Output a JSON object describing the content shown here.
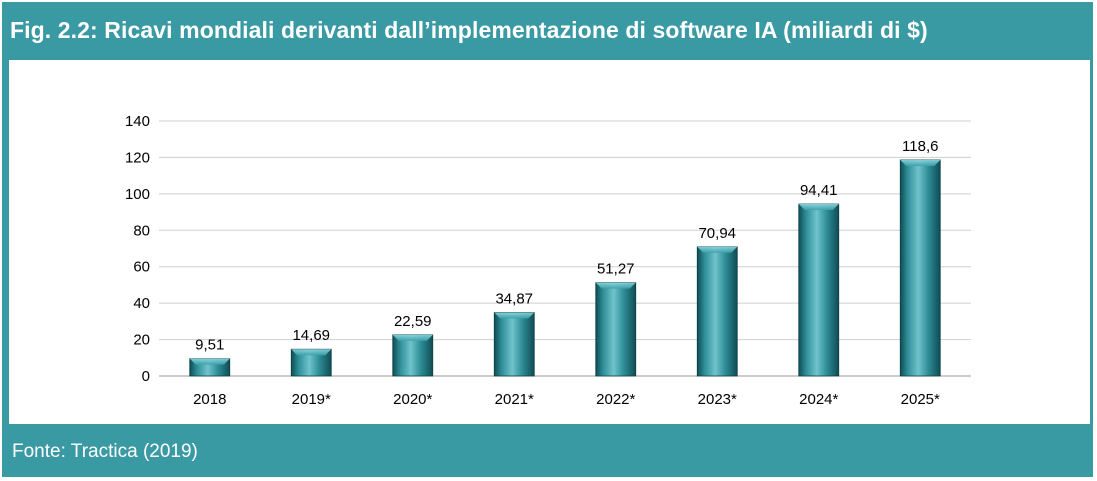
{
  "figure": {
    "title": "Fig. 2.2: Ricavi mondiali derivanti dall’implementazione di software IA (miliardi di $)",
    "source": "Fonte: Tractica (2019)"
  },
  "colors": {
    "frame": "#3a9aa3",
    "bar_light": "#6fc3cc",
    "bar_mid": "#2e8d97",
    "bar_dark": "#0f4c53",
    "grid": "#cfcfcf",
    "axis_text": "#000000"
  },
  "chart_data": {
    "type": "bar",
    "categories": [
      "2018",
      "2019*",
      "2020*",
      "2021*",
      "2022*",
      "2023*",
      "2024*",
      "2025*"
    ],
    "values": [
      9.51,
      14.69,
      22.59,
      34.87,
      51.27,
      70.94,
      94.41,
      118.6
    ],
    "data_labels": [
      "9,51",
      "14,69",
      "22,59",
      "34,87",
      "51,27",
      "70,94",
      "94,41",
      "118,6"
    ],
    "yticks": [
      0,
      20,
      40,
      60,
      80,
      100,
      120,
      140
    ],
    "ylim": [
      0,
      140
    ],
    "grid": true,
    "legend": false
  }
}
